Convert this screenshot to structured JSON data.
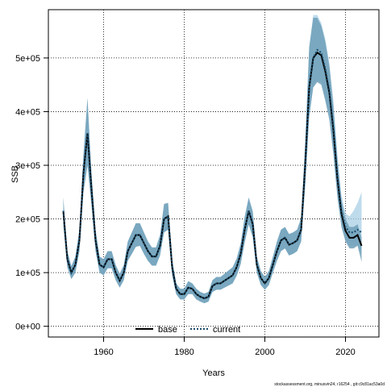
{
  "chart_data": {
    "type": "area",
    "xlabel": "Years",
    "ylabel": "SSB",
    "xlim": [
      1946.3,
      2028.3
    ],
    "ylim": [
      -20000,
      590000
    ],
    "xticks": [
      1960,
      1980,
      2000,
      2020
    ],
    "xtick_labels": [
      "1960",
      "1980",
      "2000",
      "2020"
    ],
    "yticks": [
      0,
      100000,
      200000,
      300000,
      400000,
      500000
    ],
    "ytick_labels": [
      "0e+00",
      "1e+05",
      "2e+05",
      "3e+05",
      "4e+05",
      "5e+05"
    ],
    "grid": true,
    "grid_style": "dotted",
    "legend_position": "bottom-center",
    "legend": [
      {
        "label": "base",
        "style": "solid",
        "color": "#000000"
      },
      {
        "label": "current",
        "style": "dotted",
        "color": "#1a4a6a"
      }
    ],
    "colors": {
      "base_band": "#6f9fb8",
      "current_band": "#a8cfe6",
      "base_line": "#000000",
      "current_line": "#1a4a6a"
    },
    "x": [
      1950,
      1951,
      1952,
      1953,
      1954,
      1955,
      1956,
      1957,
      1958,
      1959,
      1960,
      1961,
      1962,
      1963,
      1964,
      1965,
      1966,
      1967,
      1968,
      1969,
      1970,
      1971,
      1972,
      1973,
      1974,
      1975,
      1976,
      1977,
      1978,
      1979,
      1980,
      1981,
      1982,
      1983,
      1984,
      1985,
      1986,
      1987,
      1988,
      1989,
      1990,
      1991,
      1992,
      1993,
      1994,
      1995,
      1996,
      1997,
      1998,
      1999,
      2000,
      2001,
      2002,
      2003,
      2004,
      2005,
      2006,
      2007,
      2008,
      2009,
      2010,
      2011,
      2012,
      2013,
      2014,
      2015,
      2016,
      2017,
      2018,
      2019,
      2020,
      2021,
      2022,
      2023,
      2024
    ],
    "series": [
      {
        "name": "base",
        "values": [
          215000,
          125000,
          100000,
          115000,
          160000,
          285000,
          360000,
          255000,
          160000,
          115000,
          110000,
          125000,
          125000,
          100000,
          85000,
          100000,
          140000,
          155000,
          170000,
          170000,
          155000,
          140000,
          130000,
          130000,
          150000,
          200000,
          205000,
          110000,
          70000,
          60000,
          60000,
          72000,
          70000,
          60000,
          55000,
          52000,
          55000,
          75000,
          80000,
          80000,
          85000,
          90000,
          95000,
          110000,
          135000,
          180000,
          215000,
          190000,
          115000,
          90000,
          80000,
          90000,
          115000,
          140000,
          160000,
          165000,
          152000,
          155000,
          160000,
          180000,
          300000,
          445000,
          500000,
          510000,
          505000,
          475000,
          435000,
          365000,
          275000,
          210000,
          178000,
          165000,
          165000,
          170000,
          150000
        ]
      },
      {
        "name": "current",
        "values": [
          215000,
          125000,
          100000,
          115000,
          160000,
          285000,
          360000,
          255000,
          160000,
          115000,
          110000,
          125000,
          125000,
          100000,
          85000,
          100000,
          140000,
          155000,
          170000,
          170000,
          155000,
          140000,
          130000,
          130000,
          150000,
          200000,
          205000,
          110000,
          70000,
          60000,
          60000,
          72000,
          70000,
          60000,
          55000,
          52000,
          55000,
          75000,
          80000,
          80000,
          85000,
          90000,
          95000,
          110000,
          135000,
          180000,
          215000,
          190000,
          115000,
          90000,
          80000,
          90000,
          115000,
          140000,
          160000,
          165000,
          152000,
          155000,
          160000,
          180000,
          300000,
          445000,
          500000,
          515000,
          510000,
          480000,
          440000,
          370000,
          280000,
          215000,
          185000,
          175000,
          175000,
          180000,
          175000
        ]
      }
    ],
    "base_lower": [
      190000,
      110000,
      88000,
      100000,
      140000,
      250000,
      300000,
      225000,
      140000,
      100000,
      95000,
      108000,
      108000,
      86000,
      72000,
      86000,
      122000,
      135000,
      148000,
      150000,
      135000,
      122000,
      113000,
      113000,
      132000,
      175000,
      180000,
      95000,
      60000,
      50000,
      50000,
      60000,
      60000,
      50000,
      46000,
      43000,
      46000,
      64000,
      68000,
      68000,
      72000,
      76000,
      80000,
      94000,
      116000,
      156000,
      190000,
      166000,
      100000,
      77000,
      68000,
      77000,
      100000,
      122000,
      140000,
      145000,
      132000,
      135000,
      140000,
      158000,
      260000,
      390000,
      445000,
      455000,
      450000,
      420000,
      385000,
      320000,
      240000,
      185000,
      158000,
      145000,
      145000,
      150000,
      120000
    ],
    "base_upper": [
      240000,
      140000,
      112000,
      130000,
      180000,
      320000,
      425000,
      285000,
      180000,
      130000,
      125000,
      140000,
      140000,
      114000,
      98000,
      114000,
      158000,
      175000,
      192000,
      192000,
      175000,
      158000,
      147000,
      147000,
      170000,
      228000,
      230000,
      125000,
      80000,
      70000,
      70000,
      84000,
      80000,
      70000,
      64000,
      61000,
      64000,
      86000,
      92000,
      92000,
      98000,
      104000,
      110000,
      126000,
      154000,
      204000,
      240000,
      214000,
      130000,
      103000,
      92000,
      103000,
      130000,
      158000,
      180000,
      185000,
      172000,
      175000,
      180000,
      202000,
      340000,
      520000,
      575000,
      575000,
      560000,
      530000,
      485000,
      410000,
      310000,
      235000,
      200000,
      185000,
      185000,
      190000,
      165000
    ],
    "current_lower": [
      190000,
      110000,
      88000,
      100000,
      140000,
      250000,
      300000,
      225000,
      140000,
      100000,
      95000,
      108000,
      108000,
      86000,
      72000,
      86000,
      122000,
      135000,
      148000,
      150000,
      135000,
      122000,
      113000,
      113000,
      132000,
      175000,
      180000,
      95000,
      60000,
      50000,
      50000,
      60000,
      60000,
      50000,
      46000,
      43000,
      46000,
      64000,
      68000,
      68000,
      72000,
      76000,
      80000,
      94000,
      116000,
      156000,
      190000,
      166000,
      100000,
      77000,
      68000,
      77000,
      100000,
      122000,
      140000,
      145000,
      132000,
      135000,
      140000,
      158000,
      260000,
      390000,
      448000,
      458000,
      455000,
      425000,
      390000,
      325000,
      245000,
      190000,
      162000,
      150000,
      150000,
      152000,
      135000
    ],
    "current_upper": [
      240000,
      140000,
      112000,
      130000,
      180000,
      320000,
      425000,
      285000,
      180000,
      130000,
      125000,
      140000,
      140000,
      114000,
      98000,
      114000,
      158000,
      175000,
      192000,
      192000,
      175000,
      158000,
      147000,
      147000,
      170000,
      228000,
      230000,
      125000,
      80000,
      70000,
      70000,
      84000,
      80000,
      70000,
      64000,
      61000,
      64000,
      86000,
      92000,
      92000,
      98000,
      104000,
      110000,
      126000,
      154000,
      204000,
      240000,
      214000,
      130000,
      103000,
      92000,
      103000,
      130000,
      158000,
      180000,
      185000,
      172000,
      175000,
      180000,
      202000,
      340000,
      520000,
      580000,
      580000,
      565000,
      535000,
      490000,
      420000,
      320000,
      245000,
      210000,
      205000,
      215000,
      230000,
      250000
    ]
  },
  "footer": "stockassessment.org, minusvin24, r16254 , git:c9c81ac53a0d"
}
